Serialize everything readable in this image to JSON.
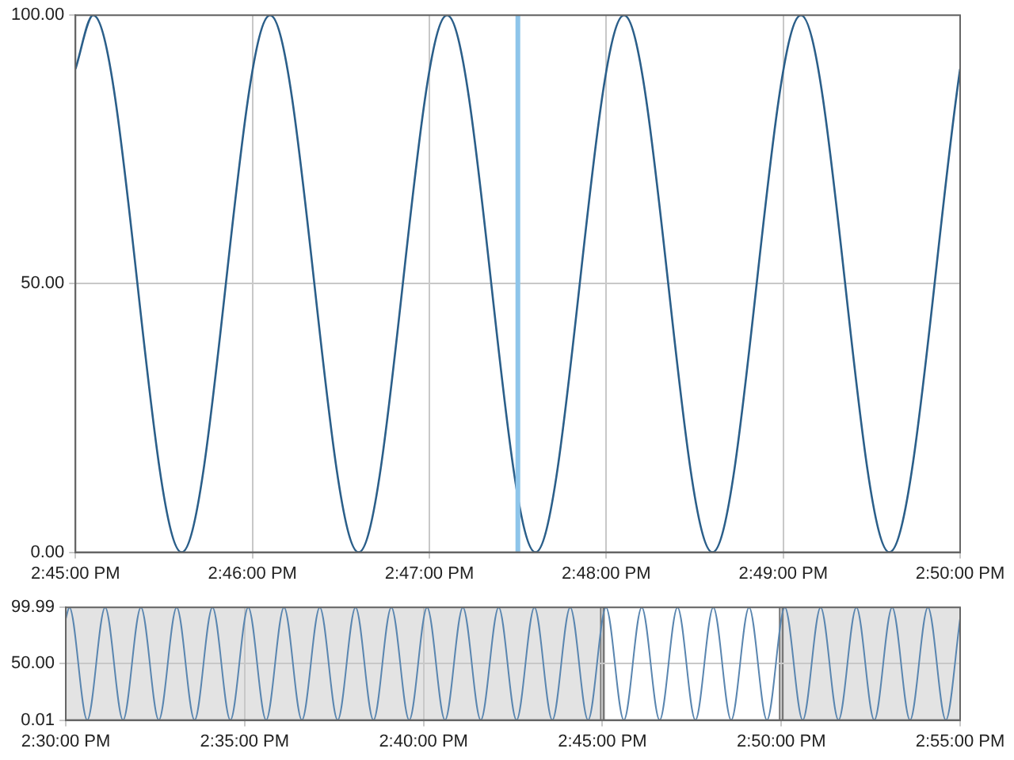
{
  "chart_data": [
    {
      "type": "line",
      "x": [
        14.75,
        14.75167,
        14.76,
        14.76833,
        14.77667,
        14.785,
        14.79333,
        14.80167,
        14.81,
        14.81833,
        14.82667,
        14.83333
      ],
      "series": [
        {
          "color": "#2b5f8a",
          "values": [
            90,
            100,
            0,
            100,
            0,
            100,
            0,
            100,
            0,
            100,
            0,
            90
          ]
        }
      ],
      "xlim": [
        14.75,
        14.83333
      ],
      "xticks": [
        {
          "value": 14.75,
          "label": "2:45:00 PM"
        },
        {
          "value": 14.76667,
          "label": "2:46:00 PM"
        },
        {
          "value": 14.78333,
          "label": "2:47:00 PM"
        },
        {
          "value": 14.8,
          "label": "2:48:00 PM"
        },
        {
          "value": 14.81667,
          "label": "2:49:00 PM"
        },
        {
          "value": 14.83333,
          "label": "2:50:00 PM"
        }
      ],
      "ylim": [
        0,
        100
      ],
      "yticks": [
        {
          "value": 0,
          "label": "0.00"
        },
        {
          "value": 50,
          "label": "50.00"
        },
        {
          "value": 100,
          "label": "100.00"
        }
      ],
      "ref_lines": [
        {
          "axis": "x",
          "value": 14.79167,
          "color": "#8ec5ea"
        }
      ],
      "grid": true,
      "legend": false,
      "marker": "none"
    },
    {
      "type": "line",
      "x": [
        14.5,
        14.50167,
        14.51,
        14.51833,
        14.52667,
        14.535,
        14.54333,
        14.55167,
        14.56,
        14.56833,
        14.57667,
        14.585,
        14.59333,
        14.60167,
        14.61,
        14.61833,
        14.62667,
        14.635,
        14.64333,
        14.65167,
        14.66,
        14.66833,
        14.67667,
        14.685,
        14.69333,
        14.70167,
        14.71,
        14.71833,
        14.72667,
        14.735,
        14.74333,
        14.75167,
        14.76,
        14.76833,
        14.77667,
        14.785,
        14.79333,
        14.80167,
        14.81,
        14.81833,
        14.82667,
        14.835,
        14.84333,
        14.85167,
        14.86,
        14.86833,
        14.87667,
        14.885,
        14.89333,
        14.90167,
        14.91,
        14.91667
      ],
      "series": [
        {
          "color": "#5a86b0",
          "values": [
            90,
            99.99,
            0.01,
            99.99,
            0.01,
            99.99,
            0.01,
            99.99,
            0.01,
            99.99,
            0.01,
            99.99,
            0.01,
            99.99,
            0.01,
            99.99,
            0.01,
            99.99,
            0.01,
            99.99,
            0.01,
            99.99,
            0.01,
            99.99,
            0.01,
            99.99,
            0.01,
            99.99,
            0.01,
            99.99,
            0.01,
            99.99,
            0.01,
            99.99,
            0.01,
            99.99,
            0.01,
            99.99,
            0.01,
            99.99,
            0.01,
            99.99,
            0.01,
            99.99,
            0.01,
            99.99,
            0.01,
            99.99,
            0.01,
            99.99,
            0.01,
            90
          ]
        }
      ],
      "xlim": [
        14.5,
        14.91667
      ],
      "xticks": [
        {
          "value": 14.5,
          "label": "2:30:00 PM"
        },
        {
          "value": 14.58333,
          "label": "2:35:00 PM"
        },
        {
          "value": 14.66667,
          "label": "2:40:00 PM"
        },
        {
          "value": 14.75,
          "label": "2:45:00 PM"
        },
        {
          "value": 14.83333,
          "label": "2:50:00 PM"
        },
        {
          "value": 14.91667,
          "label": "2:55:00 PM"
        }
      ],
      "ylim": [
        0.01,
        99.99
      ],
      "yticks": [
        {
          "value": 0.01,
          "label": "0.01"
        },
        {
          "value": 50,
          "label": "50.00"
        },
        {
          "value": 99.99,
          "label": "99.99"
        }
      ],
      "bands": [
        {
          "axis": "x",
          "from": 14.5,
          "to": 14.75,
          "color": "#e3e3e3"
        },
        {
          "axis": "x",
          "from": 14.83333,
          "to": 14.91667,
          "color": "#e3e3e3"
        }
      ],
      "grid": true,
      "legend": false,
      "marker": "none"
    }
  ]
}
